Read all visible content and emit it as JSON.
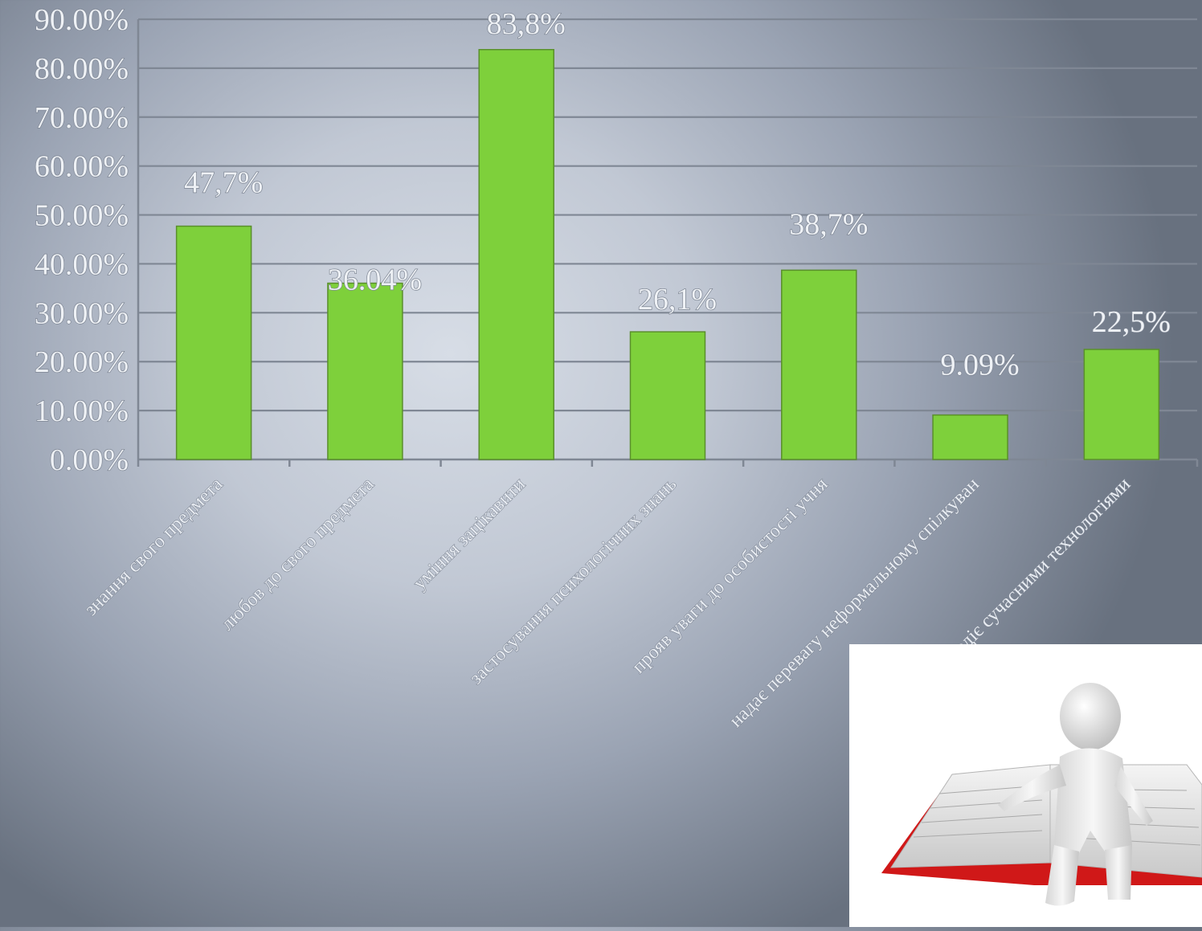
{
  "chart_data": {
    "type": "bar",
    "categories": [
      "знання свого предмета",
      "любов до свого предмета",
      "уміння зацікавити",
      "застосування психологічних знань",
      "прояв уваги до особистості учня",
      "надає перевагу неформальному спілкуван",
      "володіє сучасними технологіями"
    ],
    "values": [
      47.7,
      36.04,
      83.8,
      26.1,
      38.7,
      9.09,
      22.5
    ],
    "data_labels": [
      "47,7%",
      "36.04%",
      "83,8%",
      "26,1%",
      "38,7%",
      "9.09%",
      "22,5%"
    ],
    "y_ticks": [
      "0.00%",
      "10.00%",
      "20.00%",
      "30.00%",
      "40.00%",
      "50.00%",
      "60.00%",
      "70.00%",
      "80.00%",
      "90.00%"
    ],
    "ylim": [
      0,
      90
    ],
    "grid": true,
    "colors": {
      "bar": "#7ed03b"
    }
  },
  "illustration": {
    "icon": "person-reading-book-icon"
  }
}
